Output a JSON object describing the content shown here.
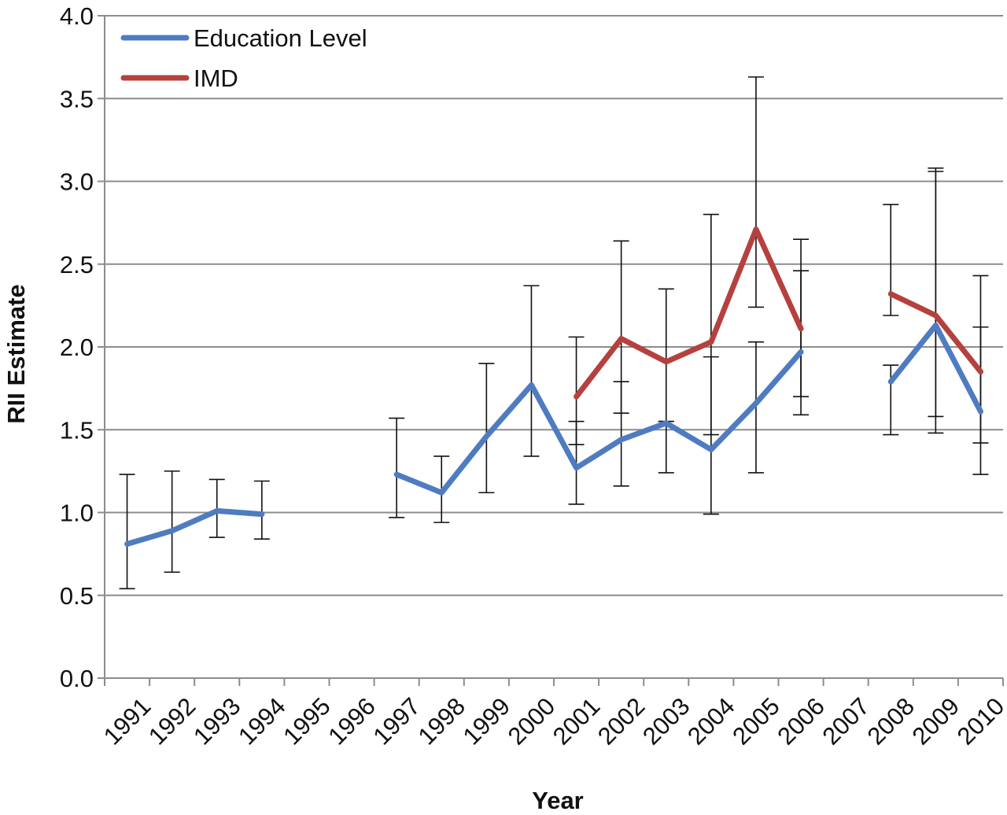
{
  "chart_data": {
    "type": "line",
    "title": "",
    "xlabel": "Year",
    "ylabel": "RII Estimate",
    "ylim": [
      0,
      4
    ],
    "yticks": [
      "0.0",
      "0.5",
      "1.0",
      "1.5",
      "2.0",
      "2.5",
      "3.0",
      "3.5",
      "4.0"
    ],
    "grid": "horizontal",
    "legend_position": "top-left",
    "categories": [
      "1991",
      "1992",
      "1993",
      "1994",
      "1995",
      "1996",
      "1997",
      "1998",
      "1999",
      "2000",
      "2001",
      "2002",
      "2003",
      "2004",
      "2005",
      "2006",
      "2007",
      "2008",
      "2009",
      "2010"
    ],
    "series": [
      {
        "name": "Education Level",
        "color": "#4F7CC1",
        "values": [
          0.81,
          0.89,
          1.01,
          0.99,
          null,
          null,
          1.23,
          1.12,
          1.46,
          1.77,
          1.27,
          1.44,
          1.54,
          1.38,
          1.66,
          1.97,
          null,
          1.79,
          2.13,
          1.61
        ],
        "error_low": [
          0.54,
          0.64,
          0.85,
          0.84,
          null,
          null,
          0.97,
          0.94,
          1.12,
          1.34,
          1.05,
          1.16,
          1.24,
          0.99,
          1.24,
          1.7,
          null,
          1.47,
          1.48,
          1.23
        ],
        "error_high": [
          1.23,
          1.25,
          1.2,
          1.19,
          null,
          null,
          1.57,
          1.34,
          1.9,
          2.37,
          1.55,
          1.79,
          1.55,
          1.94,
          2.03,
          2.46,
          null,
          1.89,
          3.08,
          2.12
        ]
      },
      {
        "name": "IMD",
        "color": "#B5413F",
        "values": [
          null,
          null,
          null,
          null,
          null,
          null,
          null,
          null,
          null,
          null,
          1.7,
          2.05,
          1.91,
          2.03,
          2.71,
          2.11,
          null,
          2.32,
          2.19,
          1.85
        ],
        "error_low": [
          null,
          null,
          null,
          null,
          null,
          null,
          null,
          null,
          null,
          null,
          1.41,
          1.6,
          1.55,
          1.47,
          2.24,
          1.59,
          null,
          2.19,
          1.58,
          1.42
        ],
        "error_high": [
          null,
          null,
          null,
          null,
          null,
          null,
          null,
          null,
          null,
          null,
          2.06,
          2.64,
          2.35,
          2.8,
          3.63,
          2.65,
          null,
          2.86,
          3.06,
          2.43
        ]
      }
    ]
  }
}
